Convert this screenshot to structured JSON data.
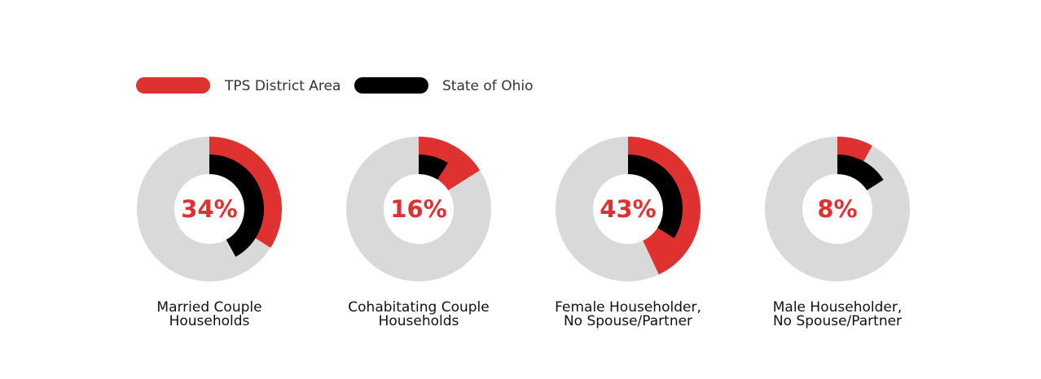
{
  "chart_data": {
    "type": "donut",
    "series": [
      {
        "name": "TPS District Area",
        "color": "#e03131",
        "values": [
          34,
          16,
          43,
          8
        ]
      },
      {
        "name": "State of Ohio",
        "color": "#000000",
        "values": [
          42,
          9,
          34,
          16
        ]
      }
    ],
    "categories": [
      [
        "Married Couple",
        "Households"
      ],
      [
        "Cohabitating Couple",
        "Households"
      ],
      [
        "Female Householder,",
        "No Spouse/Partner"
      ],
      [
        "Male Householder,",
        "No Spouse/Partner"
      ]
    ],
    "center_labels": [
      "34%",
      "16%",
      "43%",
      "8%"
    ],
    "track_color": "#d9d9d9",
    "label_color": "#e03131"
  }
}
